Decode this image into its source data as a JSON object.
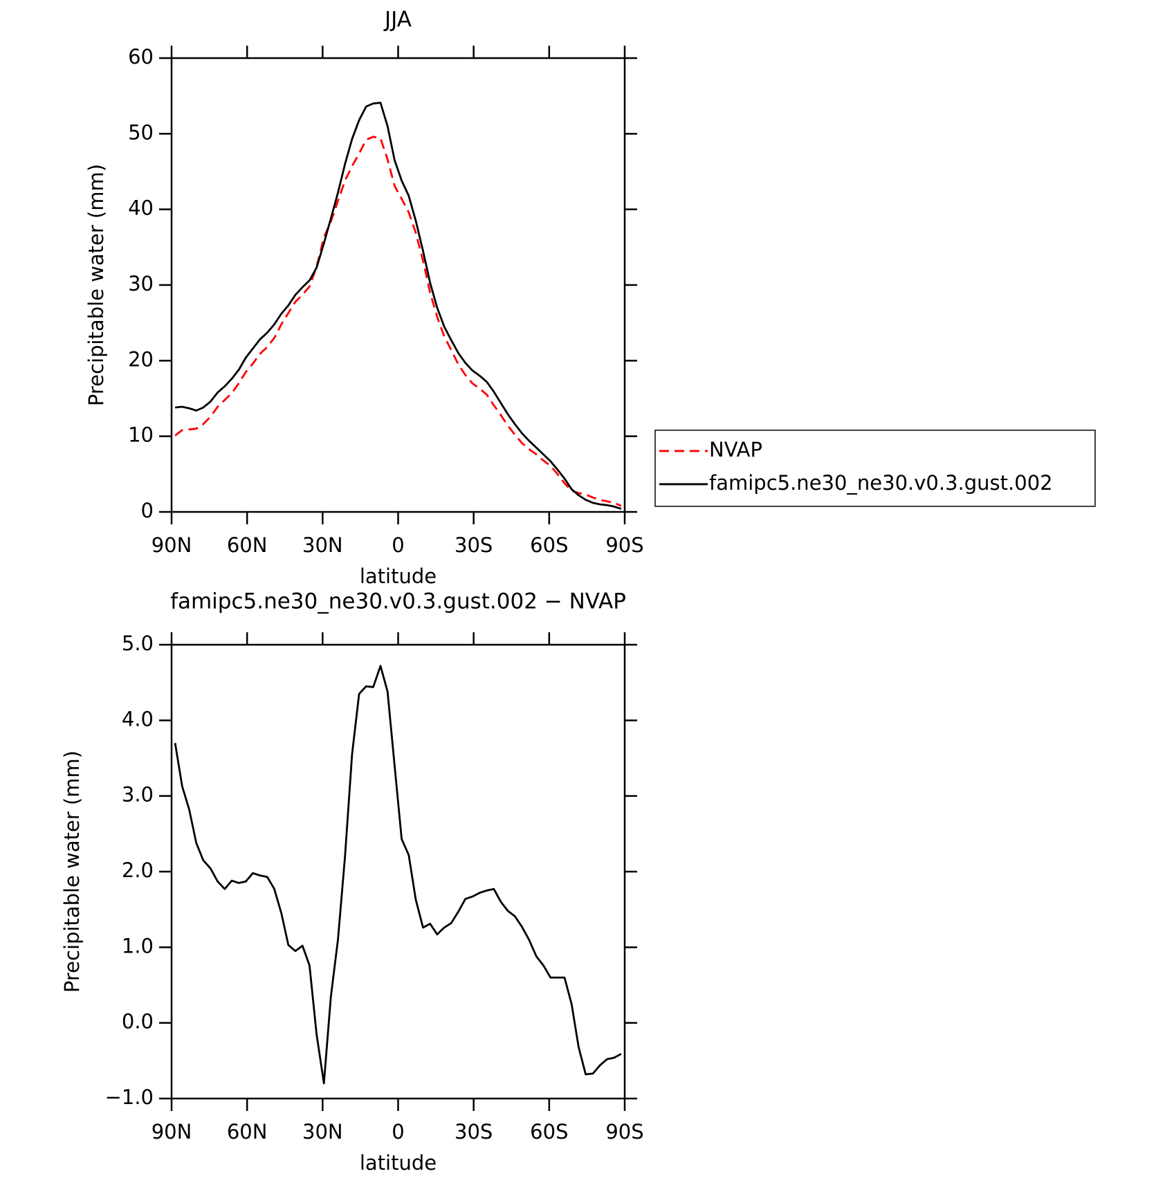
{
  "chart_data": [
    {
      "type": "line",
      "title": "JJA",
      "x_label": "latitude",
      "y_label": "Precipitable water (mm)",
      "x": [
        88.6,
        85.8,
        83.0,
        80.2,
        77.4,
        74.5,
        71.7,
        68.9,
        66.1,
        63.3,
        60.5,
        57.7,
        54.9,
        52.0,
        49.2,
        46.4,
        43.6,
        40.8,
        38.0,
        35.2,
        32.4,
        29.5,
        26.7,
        23.9,
        21.1,
        18.3,
        15.5,
        12.7,
        9.9,
        7.0,
        4.2,
        1.4,
        -1.4,
        -4.2,
        -7.0,
        -9.9,
        -12.7,
        -15.5,
        -18.3,
        -21.1,
        -23.9,
        -26.7,
        -29.5,
        -32.4,
        -35.2,
        -38.0,
        -40.8,
        -43.6,
        -46.4,
        -49.2,
        -52.0,
        -54.9,
        -57.7,
        -60.5,
        -63.3,
        -66.1,
        -68.9,
        -71.7,
        -74.5,
        -77.4,
        -80.2,
        -83.0,
        -85.8,
        -88.6
      ],
      "series": [
        {
          "name": "NVAP",
          "color": "#ff0000",
          "linestyle": "dashed",
          "values": [
            10.1,
            10.8,
            10.9,
            11.0,
            11.6,
            12.6,
            13.9,
            14.8,
            15.7,
            17.0,
            18.5,
            19.6,
            20.9,
            21.8,
            23.0,
            24.8,
            26.3,
            27.8,
            28.7,
            29.8,
            32.4,
            36.3,
            38.4,
            41.1,
            43.8,
            45.7,
            47.4,
            49.2,
            49.6,
            49.4,
            46.6,
            43.1,
            41.4,
            39.6,
            36.9,
            33.2,
            29.0,
            25.8,
            23.2,
            21.4,
            19.5,
            18.1,
            17.0,
            16.3,
            15.5,
            14.1,
            12.8,
            11.4,
            10.2,
            9.1,
            8.3,
            7.6,
            6.8,
            6.1,
            5.0,
            3.8,
            2.8,
            2.5,
            2.3,
            1.9,
            1.6,
            1.4,
            1.2,
            0.8
          ]
        },
        {
          "name": "famipc5.ne30_ne30.v0.3.gust.002",
          "color": "#000000",
          "linestyle": "solid",
          "values": [
            13.8,
            13.9,
            13.7,
            13.4,
            13.8,
            14.6,
            15.8,
            16.6,
            17.6,
            18.8,
            20.4,
            21.6,
            22.8,
            23.7,
            24.8,
            26.2,
            27.3,
            28.7,
            29.7,
            30.6,
            32.3,
            35.5,
            38.8,
            42.2,
            46.0,
            49.3,
            51.8,
            53.6,
            54.0,
            54.1,
            51.0,
            46.5,
            43.8,
            41.8,
            38.5,
            34.5,
            30.3,
            27.0,
            24.5,
            22.7,
            21.0,
            19.7,
            18.7,
            18.0,
            17.2,
            15.9,
            14.4,
            12.9,
            11.6,
            10.4,
            9.4,
            8.5,
            7.6,
            6.7,
            5.6,
            4.4,
            3.0,
            2.2,
            1.6,
            1.2,
            1.0,
            0.9,
            0.7,
            0.4
          ]
        }
      ],
      "xlim": [
        90,
        -90
      ],
      "xticks": [
        {
          "value": 90,
          "label": "90N"
        },
        {
          "value": 60,
          "label": "60N"
        },
        {
          "value": 30,
          "label": "30N"
        },
        0,
        {
          "value": -30,
          "label": "30S"
        },
        {
          "value": -60,
          "label": "60S"
        },
        {
          "value": -90,
          "label": "90S"
        }
      ],
      "ylim": [
        0,
        60
      ],
      "yticks": [
        0,
        10,
        20,
        30,
        40,
        50,
        60
      ],
      "legend": "right"
    },
    {
      "type": "line",
      "title": "famipc5.ne30_ne30.v0.3.gust.002 − NVAP",
      "x_label": "latitude",
      "y_label": "Precipitable water (mm)",
      "x": [
        88.6,
        85.8,
        83.0,
        80.2,
        77.4,
        74.5,
        71.7,
        68.9,
        66.1,
        63.3,
        60.5,
        57.7,
        54.9,
        52.0,
        49.2,
        46.4,
        43.6,
        40.8,
        38.0,
        35.2,
        32.4,
        29.5,
        26.7,
        23.9,
        21.1,
        18.3,
        15.5,
        12.7,
        9.9,
        7.0,
        4.2,
        1.4,
        -1.4,
        -4.2,
        -7.0,
        -9.9,
        -12.7,
        -15.5,
        -18.3,
        -21.1,
        -23.9,
        -26.7,
        -29.5,
        -32.4,
        -35.2,
        -38.0,
        -40.8,
        -43.6,
        -46.4,
        -49.2,
        -52.0,
        -54.9,
        -57.7,
        -60.5,
        -63.3,
        -66.1,
        -68.9,
        -71.7,
        -74.5,
        -77.4,
        -80.2,
        -83.0,
        -85.8,
        -88.6
      ],
      "values": [
        3.7,
        3.13,
        2.82,
        2.38,
        2.15,
        2.04,
        1.87,
        1.77,
        1.88,
        1.85,
        1.87,
        1.98,
        1.95,
        1.93,
        1.77,
        1.45,
        1.03,
        0.95,
        1.02,
        0.76,
        -0.15,
        -0.8,
        0.35,
        1.1,
        2.2,
        3.55,
        4.35,
        4.45,
        4.44,
        4.72,
        4.38,
        3.4,
        2.43,
        2.22,
        1.63,
        1.26,
        1.31,
        1.17,
        1.26,
        1.32,
        1.47,
        1.64,
        1.67,
        1.72,
        1.75,
        1.77,
        1.6,
        1.48,
        1.41,
        1.27,
        1.1,
        0.88,
        0.76,
        0.6,
        0.6,
        0.6,
        0.25,
        -0.32,
        -0.68,
        -0.67,
        -0.56,
        -0.48,
        -0.46,
        -0.41
      ],
      "color": "#000000",
      "xlim": [
        90,
        -90
      ],
      "xticks": [
        {
          "value": 90,
          "label": "90N"
        },
        {
          "value": 60,
          "label": "60N"
        },
        {
          "value": 30,
          "label": "30N"
        },
        0,
        {
          "value": -30,
          "label": "30S"
        },
        {
          "value": -60,
          "label": "60S"
        },
        {
          "value": -90,
          "label": "90S"
        }
      ],
      "ylim": [
        -1,
        5
      ],
      "yticks": [
        {
          "value": -1,
          "label": "−1.0"
        },
        {
          "value": 0,
          "label": "0.0"
        },
        {
          "value": 1,
          "label": "1.0"
        },
        {
          "value": 2,
          "label": "2.0"
        },
        {
          "value": 3,
          "label": "3.0"
        },
        {
          "value": 4,
          "label": "4.0"
        },
        {
          "value": 5,
          "label": "5.0"
        }
      ]
    }
  ]
}
